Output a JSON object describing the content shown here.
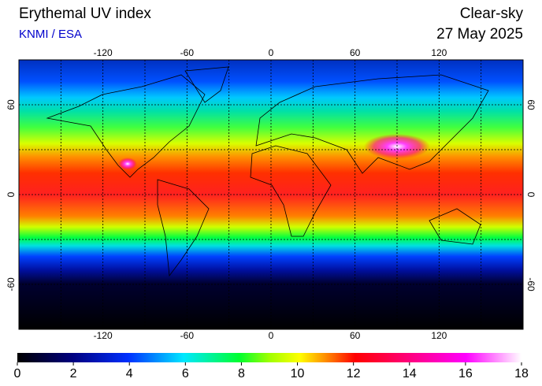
{
  "header": {
    "title": "Erythemal UV index",
    "source": "KNMI / ESA",
    "mode": "Clear-sky",
    "date": "27 May 2025"
  },
  "map": {
    "lonlim": [
      -180,
      180
    ],
    "latlim": [
      -90,
      90
    ],
    "lon_ticks": [
      -120,
      -60,
      0,
      60,
      120
    ],
    "lat_ticks": [
      -60,
      0,
      60
    ]
  },
  "colorbar": {
    "lim": [
      0,
      18
    ],
    "ticks": [
      0,
      2,
      4,
      6,
      8,
      10,
      12,
      14,
      16,
      18
    ]
  }
}
